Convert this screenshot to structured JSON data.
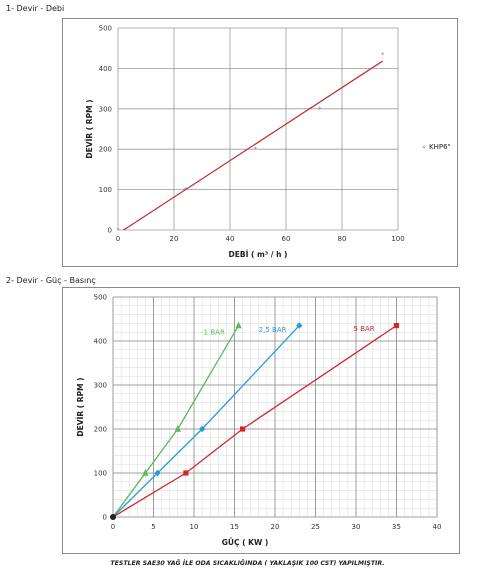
{
  "sections": [
    {
      "title": "1- Devir - Debi"
    },
    {
      "title": "2- Devir - Güç - Basınç"
    }
  ],
  "footer": "TESTLER SAE30 YAĞ İLE ODA SICAKLIĞINDA ( YAKLAŞIK 100 CST) YAPILMIŞTIR.",
  "chart_data": [
    {
      "type": "scatter",
      "title": "",
      "xlabel": "DEBİ ( m³ / h )",
      "ylabel": "DEVİR ( RPM )",
      "xlim": [
        0,
        100
      ],
      "ylim": [
        0,
        500
      ],
      "xticks": [
        0,
        20,
        40,
        60,
        80,
        100
      ],
      "yticks": [
        0,
        100,
        200,
        300,
        400,
        500
      ],
      "grid": true,
      "legend": "right",
      "series": [
        {
          "name": "KHP6\"",
          "color": "#8a7fb0",
          "marker": "star",
          "x": [
            0,
            24,
            49,
            72,
            94.5
          ],
          "y": [
            0,
            100,
            200,
            300,
            435
          ]
        }
      ],
      "trendline": {
        "color": "#c0282d",
        "x": [
          2,
          94.5
        ],
        "y": [
          0,
          418
        ]
      }
    },
    {
      "type": "line",
      "title": "",
      "xlabel": "GÜÇ ( KW )",
      "ylabel": "DEVİR ( RPM )",
      "xlim": [
        0,
        40
      ],
      "ylim": [
        0,
        500
      ],
      "xticks": [
        0,
        5,
        10,
        15,
        20,
        25,
        30,
        35,
        40
      ],
      "yticks": [
        0,
        100,
        200,
        300,
        400,
        500
      ],
      "grid": true,
      "minor_grid": true,
      "series": [
        {
          "name": "1 BAR",
          "color": "#5cb85c",
          "marker": "triangle",
          "x": [
            0,
            4,
            8,
            15.5
          ],
          "y": [
            0,
            100,
            200,
            435
          ],
          "label_at": [
            12.5,
            415
          ]
        },
        {
          "name": "2,5 BAR",
          "color": "#2b9bd8",
          "marker": "diamond",
          "x": [
            0,
            5.5,
            11,
            23
          ],
          "y": [
            0,
            100,
            200,
            435
          ],
          "label_at": [
            19.7,
            420
          ]
        },
        {
          "name": "5 BAR",
          "color": "#d0282d",
          "marker": "square",
          "x": [
            0,
            9,
            16,
            35
          ],
          "y": [
            0,
            100,
            200,
            435
          ],
          "label_at": [
            31,
            423
          ]
        }
      ],
      "origin_marker": {
        "color": "#222222"
      }
    }
  ]
}
